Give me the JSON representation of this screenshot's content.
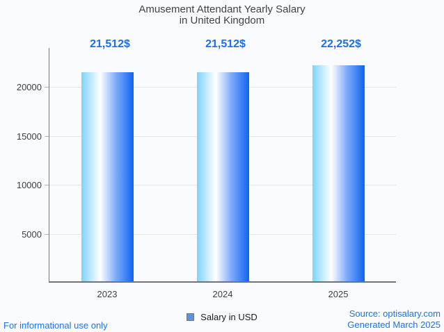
{
  "chart": {
    "title_line1": "Amusement Attendant Yearly Salary",
    "title_line2": "in United Kingdom"
  },
  "chart_data": {
    "type": "bar",
    "title": "Amusement Attendant Yearly Salary in United Kingdom",
    "categories": [
      "2023",
      "2024",
      "2025"
    ],
    "series": [
      {
        "name": "Salary in USD",
        "values": [
          21512,
          21512,
          22252
        ]
      }
    ],
    "value_labels": [
      "21,512$",
      "21,512$",
      "22,252$"
    ],
    "xlabel": "",
    "ylabel": "",
    "ylim": [
      0,
      24000
    ],
    "yticks": [
      5000,
      10000,
      15000,
      20000
    ],
    "grid": true,
    "legend_position": "bottom"
  },
  "legend": {
    "label": "Salary in USD",
    "swatch_color": "#5a94e0"
  },
  "footer": {
    "left": "For informational use only",
    "source": "Source: optisalary.com",
    "generated": "Generated March 2025"
  },
  "colors": {
    "background": "#fafbfe",
    "title_text": "#424242",
    "tick_label_text": "#3c4043",
    "value_label_text": "#1a6ef0",
    "footer_link_text": "#1a73e8",
    "axis_line": "#757575",
    "gridline": "#e4e7ea",
    "bar_gradient": [
      "#7ed3fc",
      "#ffffff",
      "#7fabf9",
      "#0f64f2"
    ]
  }
}
